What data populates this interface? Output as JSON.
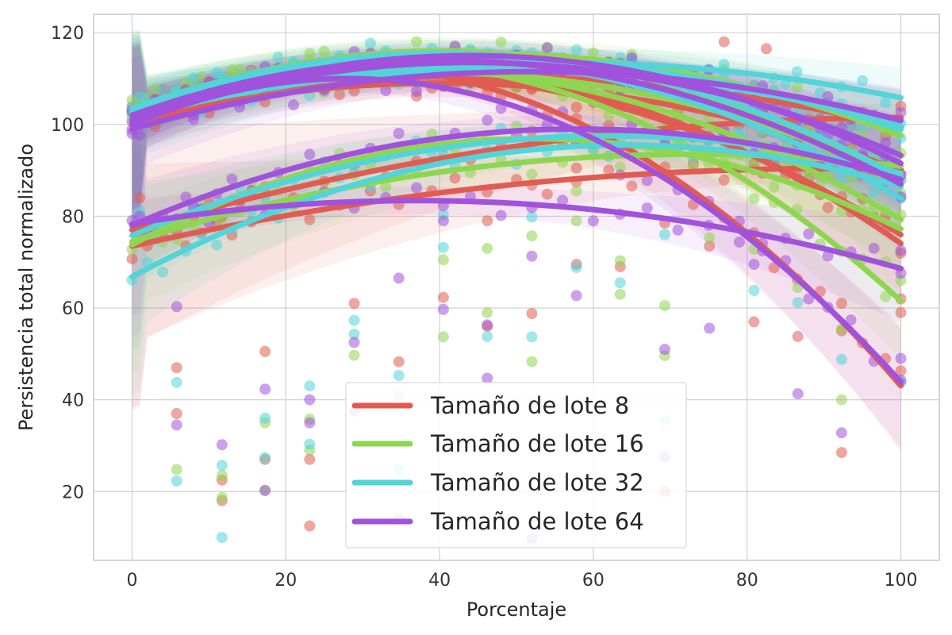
{
  "chart_data": {
    "type": "scatter",
    "title": "",
    "xlabel": "Porcentaje",
    "ylabel": "Persistencia total normalizado",
    "xlim": [
      -5,
      105
    ],
    "ylim": [
      5,
      124
    ],
    "xticks": [
      "0",
      "20",
      "40",
      "60",
      "80",
      "100"
    ],
    "yticks": [
      "20",
      "40",
      "60",
      "80",
      "100",
      "120"
    ],
    "grid": true,
    "legend_position": "bottom-center",
    "x_samples": [
      0,
      1,
      2,
      3,
      4,
      5.8,
      7,
      8,
      9,
      10,
      11,
      11.7,
      13,
      14,
      15.5,
      17.3,
      19,
      21,
      23.1,
      25,
      27,
      28.9,
      31,
      33,
      34.7,
      37,
      39,
      40.5,
      42,
      44,
      46.2,
      48,
      50,
      52,
      54,
      56,
      57.8,
      60,
      62,
      63.5,
      65,
      67,
      69.3,
      71,
      73,
      75,
      77,
      79,
      80.9,
      82,
      83.5,
      85,
      86.5,
      88,
      89.5,
      90.5,
      92.3,
      93.5,
      95,
      96.5,
      98,
      100
    ],
    "series": [
      {
        "name": "Tamaño de lote 8",
        "color": "#e05c52",
        "scatter": [
          [
            0,
            103
          ],
          [
            1,
            84
          ],
          [
            5.8,
            47
          ],
          [
            5.8,
            37
          ],
          [
            11.7,
            22.5
          ],
          [
            11.7,
            18
          ],
          [
            17.3,
            50.5
          ],
          [
            17.3,
            27
          ],
          [
            23.1,
            27
          ],
          [
            23.1,
            12.5
          ],
          [
            28.9,
            61
          ],
          [
            34.7,
            48.3
          ],
          [
            40.5,
            62.3
          ],
          [
            46.2,
            79
          ],
          [
            46.2,
            56
          ],
          [
            52,
            58.8
          ],
          [
            52,
            86.8
          ],
          [
            57.8,
            90.5
          ],
          [
            57.8,
            69.5
          ],
          [
            63.5,
            69
          ],
          [
            69.3,
            78.5
          ],
          [
            69.3,
            20
          ],
          [
            75.1,
            73.5
          ],
          [
            77,
            118
          ],
          [
            80.9,
            57
          ],
          [
            82.5,
            116.5
          ],
          [
            86.6,
            53.8
          ],
          [
            92.3,
            28.5
          ],
          [
            92.3,
            61
          ],
          [
            98,
            80
          ],
          [
            100,
            46.3
          ],
          [
            100,
            59
          ],
          [
            100,
            62
          ]
        ],
        "curves": [
          [
            73.5,
            90.4,
            91
          ],
          [
            77,
            101.5,
            101
          ],
          [
            102,
            112.5,
            28
          ],
          [
            101,
            112,
            35
          ],
          [
            103,
            110.5,
            45
          ],
          [
            100.5,
            109,
            40
          ],
          [
            102.5,
            111,
            33
          ]
        ]
      },
      {
        "name": "Tamaño de lote 16",
        "color": "#8fd650",
        "scatter": [
          [
            0,
            102
          ],
          [
            5.8,
            24.8
          ],
          [
            11.7,
            18.7
          ],
          [
            11.7,
            23.5
          ],
          [
            17.3,
            20.3
          ],
          [
            17.3,
            35
          ],
          [
            23.1,
            35.8
          ],
          [
            23.1,
            29
          ],
          [
            28.9,
            49.7
          ],
          [
            34.7,
            40.8
          ],
          [
            40.5,
            70.5
          ],
          [
            40.5,
            53.7
          ],
          [
            46.2,
            59
          ],
          [
            46.2,
            73
          ],
          [
            52,
            75.7
          ],
          [
            52,
            48.3
          ],
          [
            57.8,
            79
          ],
          [
            57.8,
            85.5
          ],
          [
            63.5,
            70.3
          ],
          [
            63.5,
            63
          ],
          [
            69.3,
            60.5
          ],
          [
            69.3,
            49.6
          ],
          [
            75.1,
            75.3
          ],
          [
            80.9,
            72.8
          ],
          [
            86.6,
            64.5
          ],
          [
            92.3,
            55.5
          ],
          [
            92.3,
            40
          ],
          [
            98,
            70
          ],
          [
            100,
            66
          ]
        ],
        "curves": [
          [
            74.5,
            93.5,
            73
          ],
          [
            73.8,
            96.9,
            52
          ],
          [
            103,
            116,
            40
          ],
          [
            102,
            113.5,
            32
          ],
          [
            101,
            111.2,
            40
          ],
          [
            103.5,
            115.5,
            45
          ],
          [
            102.5,
            112,
            35
          ]
        ]
      },
      {
        "name": "Tamaño de lote 32",
        "color": "#52d4d8",
        "scatter": [
          [
            1,
            81
          ],
          [
            5.8,
            22.3
          ],
          [
            5.8,
            43.8
          ],
          [
            11.7,
            25.7
          ],
          [
            11.7,
            10
          ],
          [
            17.3,
            27.4
          ],
          [
            17.3,
            36
          ],
          [
            23.1,
            43
          ],
          [
            23.1,
            30.3
          ],
          [
            28.9,
            57.3
          ],
          [
            28.9,
            54.3
          ],
          [
            34.7,
            45.3
          ],
          [
            34.7,
            24.7
          ],
          [
            40.5,
            80.3
          ],
          [
            40.5,
            73.2
          ],
          [
            46.2,
            53.8
          ],
          [
            52,
            53.7
          ],
          [
            52,
            79.8
          ],
          [
            57.8,
            68.8
          ],
          [
            63.5,
            65.5
          ],
          [
            69.3,
            35.5
          ],
          [
            69.3,
            76
          ],
          [
            80.9,
            63.8
          ],
          [
            86.6,
            61.2
          ],
          [
            92.3,
            48.8
          ],
          [
            100,
            43.8
          ],
          [
            100,
            97
          ]
        ],
        "curves": [
          [
            66.8,
            95.5,
            64
          ],
          [
            75.8,
            97.5,
            62
          ],
          [
            102,
            113.5,
            55
          ],
          [
            103,
            114.5,
            38
          ],
          [
            101.5,
            112,
            48
          ],
          [
            103,
            114,
            46
          ],
          [
            103.5,
            115.5,
            40
          ]
        ]
      },
      {
        "name": "Tamaño de lote 64",
        "color": "#a152dc",
        "scatter": [
          [
            0,
            98
          ],
          [
            5.8,
            60.3
          ],
          [
            5.8,
            34.5
          ],
          [
            11.7,
            30.2
          ],
          [
            17.3,
            42.3
          ],
          [
            17.3,
            20.2
          ],
          [
            23.1,
            40
          ],
          [
            23.1,
            35
          ],
          [
            28.9,
            52.5
          ],
          [
            28.9,
            37.5
          ],
          [
            34.7,
            66.5
          ],
          [
            34.7,
            14
          ],
          [
            40.5,
            79
          ],
          [
            40.5,
            59.7
          ],
          [
            46.2,
            44.7
          ],
          [
            46.2,
            56.3
          ],
          [
            52,
            71.3
          ],
          [
            52,
            9.7
          ],
          [
            57.8,
            62.7
          ],
          [
            63.5,
            89
          ],
          [
            69.3,
            51
          ],
          [
            69.3,
            27.5
          ],
          [
            75.1,
            55.6
          ],
          [
            80.9,
            69.5
          ],
          [
            86.6,
            41.3
          ],
          [
            92.3,
            32.8
          ],
          [
            100,
            49
          ],
          [
            100,
            72.5
          ],
          [
            100,
            89
          ]
        ],
        "curves": [
          [
            78.3,
            83.4,
            37
          ],
          [
            78,
            99,
            58
          ],
          [
            100,
            110,
            28
          ],
          [
            100.5,
            115,
            44
          ],
          [
            99,
            111.5,
            52
          ],
          [
            101,
            113.5,
            44
          ],
          [
            102,
            114,
            40
          ]
        ]
      }
    ],
    "legend": [
      "Tamaño de lote 8",
      "Tamaño de lote 16",
      "Tamaño de lote 32",
      "Tamaño de lote 64"
    ]
  }
}
